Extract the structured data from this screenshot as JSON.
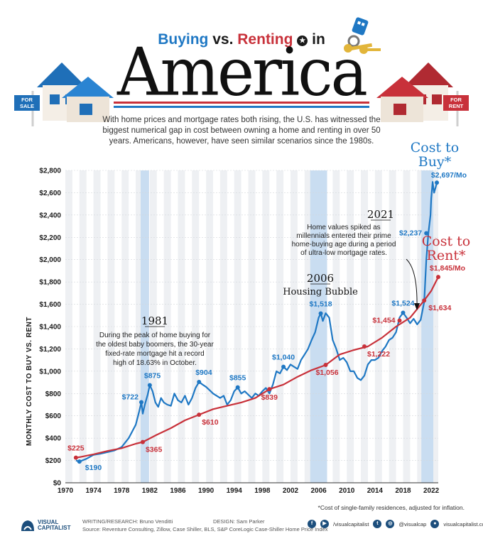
{
  "header": {
    "buy_word": "Buying",
    "vs_word": "vs.",
    "rent_word": "Renting",
    "in_word": "in",
    "big_title": "America",
    "intro": "With home prices and mortgage rates both rising, the U.S. has witnessed the biggest numerical gap in cost between owning a home and renting in over 50 years. Americans, however, have seen similar scenarios since the 1980s.",
    "sign_sale": "FOR SALE",
    "sign_rent": "FOR RENT"
  },
  "chart_data": {
    "type": "line",
    "ylabel": "MONTHLY COST TO BUY VS. RENT",
    "ylim": [
      0,
      2800
    ],
    "xlim": [
      1970,
      2023
    ],
    "y_ticks": [
      "$0",
      "$200",
      "$400",
      "$600",
      "$800",
      "$1,000",
      "$1,200",
      "$1,400",
      "$1,600",
      "$1,800",
      "$2,000",
      "$2,200",
      "$2,400",
      "$2,600",
      "$2,800"
    ],
    "y_tick_values": [
      0,
      200,
      400,
      600,
      800,
      1000,
      1200,
      1400,
      1600,
      1800,
      2000,
      2200,
      2400,
      2600,
      2800
    ],
    "x_ticks": [
      "1970",
      "1974",
      "1978",
      "1982",
      "1986",
      "1990",
      "1994",
      "1998",
      "2002",
      "2006",
      "2010",
      "2014",
      "2018",
      "2022"
    ],
    "x_tick_values": [
      1970,
      1974,
      1978,
      1982,
      1986,
      1990,
      1994,
      1998,
      2002,
      2006,
      2010,
      2014,
      2018,
      2022
    ],
    "highlight_periods": [
      [
        1980.7,
        1981.9
      ],
      [
        2004.8,
        2007.2
      ],
      [
        2020.6,
        2022.3
      ]
    ],
    "series": [
      {
        "name": "Cost to Buy*",
        "color": "#1f78c4",
        "x": [
          1971.5,
          1972,
          1973,
          1974,
          1975,
          1976,
          1977,
          1978,
          1979,
          1980,
          1980.5,
          1980.8,
          1981,
          1981.3,
          1981.7,
          1982,
          1982.4,
          1982.8,
          1983.2,
          1983.6,
          1984,
          1984.5,
          1985,
          1985.5,
          1986,
          1986.5,
          1987,
          1987.5,
          1988,
          1988.5,
          1989,
          1989.5,
          1990,
          1990.5,
          1991,
          1991.5,
          1992,
          1992.5,
          1993,
          1993.5,
          1994,
          1994.5,
          1995,
          1995.5,
          1996,
          1996.5,
          1997,
          1997.5,
          1998,
          1998.5,
          1999,
          1999.5,
          2000,
          2000.5,
          2001,
          2001.5,
          2002,
          2002.5,
          2003,
          2003.5,
          2004,
          2004.5,
          2005,
          2005.5,
          2006,
          2006.3,
          2006.6,
          2007,
          2007.5,
          2008,
          2008.5,
          2009,
          2009.5,
          2010,
          2010.5,
          2011,
          2011.5,
          2012,
          2012.5,
          2013,
          2013.5,
          2014,
          2014.5,
          2015,
          2015.5,
          2016,
          2016.5,
          2017,
          2017.5,
          2018,
          2018.5,
          2019,
          2019.5,
          2020,
          2020.5,
          2021,
          2021.3,
          2021.6,
          2021.9,
          2022,
          2022.2,
          2022.4,
          2022.6,
          2022.8
        ],
        "y": [
          200,
          190,
          215,
          250,
          260,
          275,
          290,
          320,
          400,
          520,
          640,
          722,
          620,
          700,
          790,
          875,
          820,
          720,
          680,
          760,
          720,
          700,
          690,
          800,
          740,
          720,
          780,
          700,
          760,
          850,
          904,
          880,
          860,
          830,
          800,
          780,
          760,
          780,
          700,
          740,
          820,
          855,
          800,
          820,
          790,
          760,
          800,
          780,
          820,
          850,
          800,
          880,
          1000,
          980,
          1040,
          1010,
          1060,
          1040,
          1020,
          1100,
          1150,
          1200,
          1280,
          1350,
          1480,
          1518,
          1450,
          1520,
          1480,
          1280,
          1200,
          1100,
          1120,
          1080,
          1000,
          1000,
          940,
          920,
          960,
          1060,
          1100,
          1100,
          1120,
          1180,
          1220,
          1280,
          1300,
          1350,
          1480,
          1524,
          1480,
          1430,
          1470,
          1420,
          1460,
          1620,
          2000,
          2237,
          2400,
          2550,
          2697,
          2600,
          2640,
          2690
        ]
      },
      {
        "name": "Cost to Rent*",
        "color": "#c8313a",
        "x": [
          1971.5,
          1972,
          1974,
          1976,
          1978,
          1980,
          1981,
          1983,
          1985,
          1987,
          1989,
          1991,
          1993,
          1995,
          1997,
          1999,
          2001,
          2003,
          2005,
          2007,
          2009,
          2011,
          2013,
          2015,
          2017,
          2019,
          2021,
          2022,
          2023
        ],
        "y": [
          225,
          230,
          255,
          285,
          310,
          350,
          365,
          430,
          490,
          560,
          610,
          660,
          690,
          720,
          760,
          839,
          880,
          950,
          1010,
          1056,
          1150,
          1190,
          1222,
          1300,
          1400,
          1480,
          1634,
          1720,
          1845
        ]
      }
    ],
    "point_labels": [
      {
        "series": 0,
        "x": 1972,
        "y": 190,
        "text": "$190"
      },
      {
        "series": 0,
        "x": 1980.8,
        "y": 722,
        "text": "$722"
      },
      {
        "series": 0,
        "x": 1982,
        "y": 875,
        "text": "$875"
      },
      {
        "series": 0,
        "x": 1989,
        "y": 904,
        "text": "$904"
      },
      {
        "series": 0,
        "x": 1994.5,
        "y": 855,
        "text": "$855"
      },
      {
        "series": 0,
        "x": 2001,
        "y": 1040,
        "text": "$1,040"
      },
      {
        "series": 0,
        "x": 2006.3,
        "y": 1518,
        "text": "$1,518"
      },
      {
        "series": 0,
        "x": 2018,
        "y": 1524,
        "text": "$1,524"
      },
      {
        "series": 0,
        "x": 2021.3,
        "y": 2237,
        "text": "$2,237"
      },
      {
        "series": 1,
        "x": 1971.5,
        "y": 225,
        "text": "$225"
      },
      {
        "series": 1,
        "x": 1981,
        "y": 365,
        "text": "$365"
      },
      {
        "series": 1,
        "x": 1989,
        "y": 610,
        "text": "$610"
      },
      {
        "series": 1,
        "x": 1999,
        "y": 839,
        "text": "$839"
      },
      {
        "series": 1,
        "x": 2007,
        "y": 1056,
        "text": "$1,056"
      },
      {
        "series": 1,
        "x": 2012.5,
        "y": 1222,
        "text": "$1,222"
      },
      {
        "series": 1,
        "x": 2017.5,
        "y": 1454,
        "text": "$1,454"
      },
      {
        "series": 1,
        "x": 2021,
        "y": 1634,
        "text": "$1,634"
      }
    ],
    "annotations": {
      "a1981": {
        "year": "1981",
        "lines": [
          "During the peak of home buying for",
          "the oldest baby boomers, the 30-year",
          "fixed-rate mortgage hit a record",
          "high of 18.63% in October."
        ]
      },
      "a2006": {
        "year": "2006",
        "head": "Housing Bubble"
      },
      "a2021": {
        "year": "2021",
        "lines": [
          "Home values spiked as",
          "millennials entered their prime",
          "home-buying age during a period",
          "of ultra-low mortgage rates."
        ]
      },
      "buy_title": [
        "Cost to",
        "Buy*"
      ],
      "buy_value": "$2,697/Mo",
      "rent_title": [
        "Cost to",
        "Rent*"
      ],
      "rent_value": "$1,845/Mo"
    }
  },
  "footer": {
    "note": "*Cost of single-family residences, adjusted for inflation.",
    "logo": [
      "VISUAL",
      "CAPITALIST"
    ],
    "research": "WRITING/RESEARCH: Bruno Venditti",
    "design": "DESIGN: Sam Parker",
    "source": "Source: Reventure Consulting, Zillow, Case Shiller, BLS, S&P CoreLogic Case-Shiller Home Price Index",
    "social_1": "/visualcapitalist",
    "social_2": "@visualcap",
    "social_3": "visualcapitalist.com"
  }
}
